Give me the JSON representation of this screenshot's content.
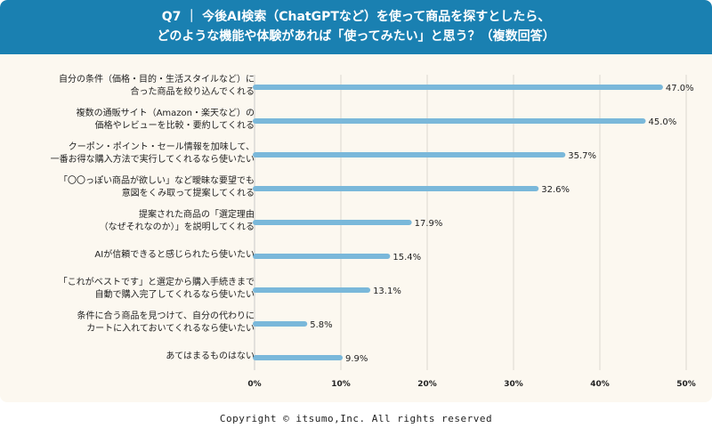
{
  "header": {
    "line1": "Q7 ｜ 今後AI検索（ChatGPTなど）を使って商品を探すとしたら、",
    "line2": "どのような機能や体験があれば「使ってみたい」と思う？（複数回答）"
  },
  "chart_data": {
    "type": "bar",
    "orientation": "horizontal",
    "title": "Q7 ｜ 今後AI検索（ChatGPTなど）を使って商品を探すとしたら、どのような機能や体験があれば「使ってみたい」と思う？（複数回答）",
    "categories": [
      [
        "自分の条件（価格・目的・生活スタイルなど）に",
        "合った商品を絞り込んでくれる"
      ],
      [
        "複数の通販サイト（Amazon・楽天など）の",
        "価格やレビューを比較・要約してくれる"
      ],
      [
        "クーポン・ポイント・セール情報を加味して、",
        "一番お得な購入方法で実行してくれるなら使いたい"
      ],
      [
        "「〇〇っぽい商品が欲しい」など曖昧な要望でも",
        "意図をくみ取って提案してくれる"
      ],
      [
        "提案された商品の「選定理由",
        "（なぜそれなのか）」を説明してくれる"
      ],
      [
        "AIが信頼できると感じられたら使いたい"
      ],
      [
        "「これがベストです」と選定から購入手続きまで",
        "自動で購入完了してくれるなら使いたい"
      ],
      [
        "条件に合う商品を見つけて、自分の代わりに",
        "カートに入れておいてくれるなら使いたい"
      ],
      [
        "あてはまるものはない"
      ]
    ],
    "values": [
      47.0,
      45.0,
      35.7,
      32.6,
      17.9,
      15.4,
      13.1,
      5.8,
      9.9
    ],
    "value_labels": [
      "47.0%",
      "45.0%",
      "35.7%",
      "32.6%",
      "17.9%",
      "15.4%",
      "13.1%",
      "5.8%",
      "9.9%"
    ],
    "xlim": [
      0,
      50
    ],
    "xticks": [
      "0%",
      "10%",
      "20%",
      "30%",
      "40%",
      "50%"
    ],
    "grid": true,
    "bar_color": "#7ab8da",
    "header_color": "#1a80b1"
  },
  "footer": {
    "copyright": "Copyright © itsumo,Inc. All rights reserved"
  }
}
